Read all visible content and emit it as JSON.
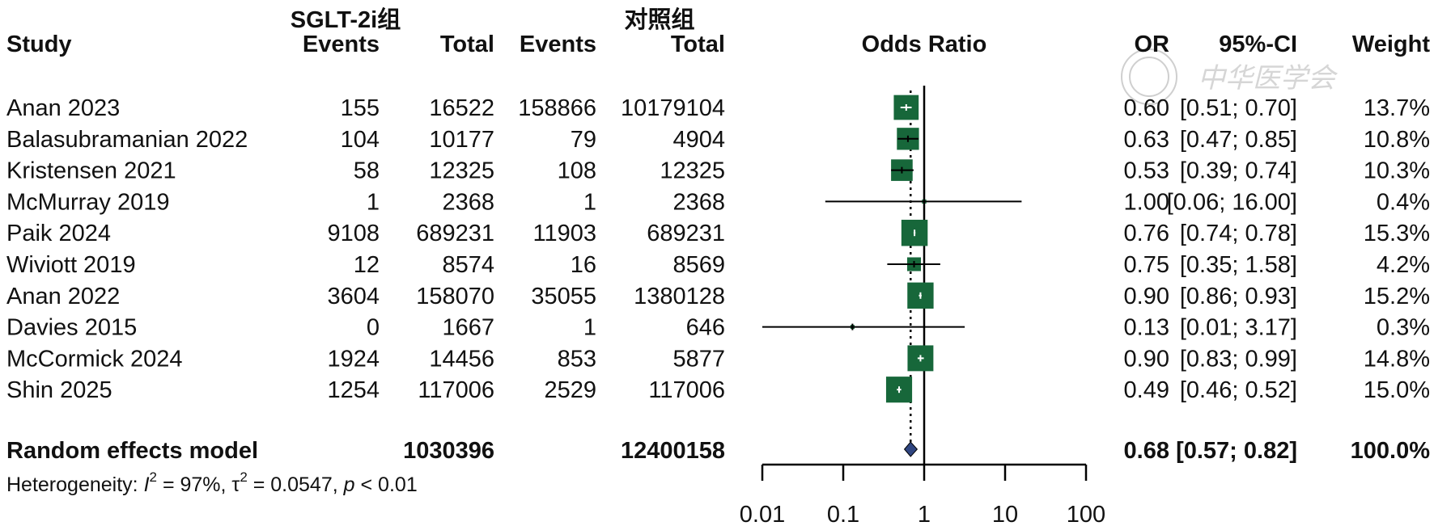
{
  "headers": {
    "group1": "SGLT-2i组",
    "group2": "对照组",
    "study": "Study",
    "events1": "Events",
    "total1": "Total",
    "events2": "Events",
    "total2": "Total",
    "plot": "Odds Ratio",
    "or": "OR",
    "ci": "95%-CI",
    "weight": "Weight"
  },
  "watermark": "中华医学会",
  "chart_data": {
    "type": "forest",
    "xlabel": "",
    "x_scale": "log",
    "xlim": [
      0.01,
      100
    ],
    "x_ticks": [
      "0.01",
      "0.1",
      "1",
      "10",
      "100"
    ],
    "reference_line": 1,
    "studies": [
      {
        "study": "Anan 2023",
        "events1": "155",
        "total1": "16522",
        "events2": "158866",
        "total2": "10179104",
        "or": 0.6,
        "lo": 0.51,
        "hi": 0.7,
        "or_text": "0.60",
        "ci_text": "[0.51; 0.70]",
        "weight": 13.7,
        "weight_text": "13.7%"
      },
      {
        "study": "Balasubramanian 2022",
        "events1": "104",
        "total1": "10177",
        "events2": "79",
        "total2": "4904",
        "or": 0.63,
        "lo": 0.47,
        "hi": 0.85,
        "or_text": "0.63",
        "ci_text": "[0.47; 0.85]",
        "weight": 10.8,
        "weight_text": "10.8%"
      },
      {
        "study": "Kristensen 2021",
        "events1": "58",
        "total1": "12325",
        "events2": "108",
        "total2": "12325",
        "or": 0.53,
        "lo": 0.39,
        "hi": 0.74,
        "or_text": "0.53",
        "ci_text": "[0.39; 0.74]",
        "weight": 10.3,
        "weight_text": "10.3%"
      },
      {
        "study": "McMurray 2019",
        "events1": "1",
        "total1": "2368",
        "events2": "1",
        "total2": "2368",
        "or": 1.0,
        "lo": 0.06,
        "hi": 16.0,
        "or_text": "1.00",
        "ci_text": "[0.06; 16.00]",
        "weight": 0.4,
        "weight_text": "0.4%"
      },
      {
        "study": "Paik 2024",
        "events1": "9108",
        "total1": "689231",
        "events2": "11903",
        "total2": "689231",
        "or": 0.76,
        "lo": 0.74,
        "hi": 0.78,
        "or_text": "0.76",
        "ci_text": "[0.74; 0.78]",
        "weight": 15.3,
        "weight_text": "15.3%"
      },
      {
        "study": "Wiviott 2019",
        "events1": "12",
        "total1": "8574",
        "events2": "16",
        "total2": "8569",
        "or": 0.75,
        "lo": 0.35,
        "hi": 1.58,
        "or_text": "0.75",
        "ci_text": "[0.35; 1.58]",
        "weight": 4.2,
        "weight_text": "4.2%"
      },
      {
        "study": "Anan 2022",
        "events1": "3604",
        "total1": "158070",
        "events2": "35055",
        "total2": "1380128",
        "or": 0.9,
        "lo": 0.86,
        "hi": 0.93,
        "or_text": "0.90",
        "ci_text": "[0.86; 0.93]",
        "weight": 15.2,
        "weight_text": "15.2%"
      },
      {
        "study": "Davies 2015",
        "events1": "0",
        "total1": "1667",
        "events2": "1",
        "total2": "646",
        "or": 0.13,
        "lo": 0.01,
        "hi": 3.17,
        "or_text": "0.13",
        "ci_text": "[0.01; 3.17]",
        "weight": 0.3,
        "weight_text": "0.3%"
      },
      {
        "study": "McCormick 2024",
        "events1": "1924",
        "total1": "14456",
        "events2": "853",
        "total2": "5877",
        "or": 0.9,
        "lo": 0.83,
        "hi": 0.99,
        "or_text": "0.90",
        "ci_text": "[0.83; 0.99]",
        "weight": 14.8,
        "weight_text": "14.8%"
      },
      {
        "study": "Shin 2025",
        "events1": "1254",
        "total1": "117006",
        "events2": "2529",
        "total2": "117006",
        "or": 0.49,
        "lo": 0.46,
        "hi": 0.52,
        "or_text": "0.49",
        "ci_text": "[0.46; 0.52]",
        "weight": 15.0,
        "weight_text": "15.0%"
      }
    ],
    "pooled": {
      "label": "Random effects model",
      "total1": "1030396",
      "total2": "12400158",
      "or": 0.68,
      "lo": 0.57,
      "hi": 0.82,
      "or_text": "0.68",
      "ci_text": "[0.57; 0.82]",
      "weight_text": "100.0%"
    },
    "heterogeneity": {
      "label": "Heterogeneity:",
      "i2_symbol": "I",
      "i2": "= 97%,",
      "tau2_symbol": "τ",
      "tau2": "= 0.0547,",
      "p_symbol": "p",
      "p": "< 0.01"
    },
    "colors": {
      "box": "#17673a",
      "diamond": "#2f4580",
      "lines": "#000000"
    }
  }
}
